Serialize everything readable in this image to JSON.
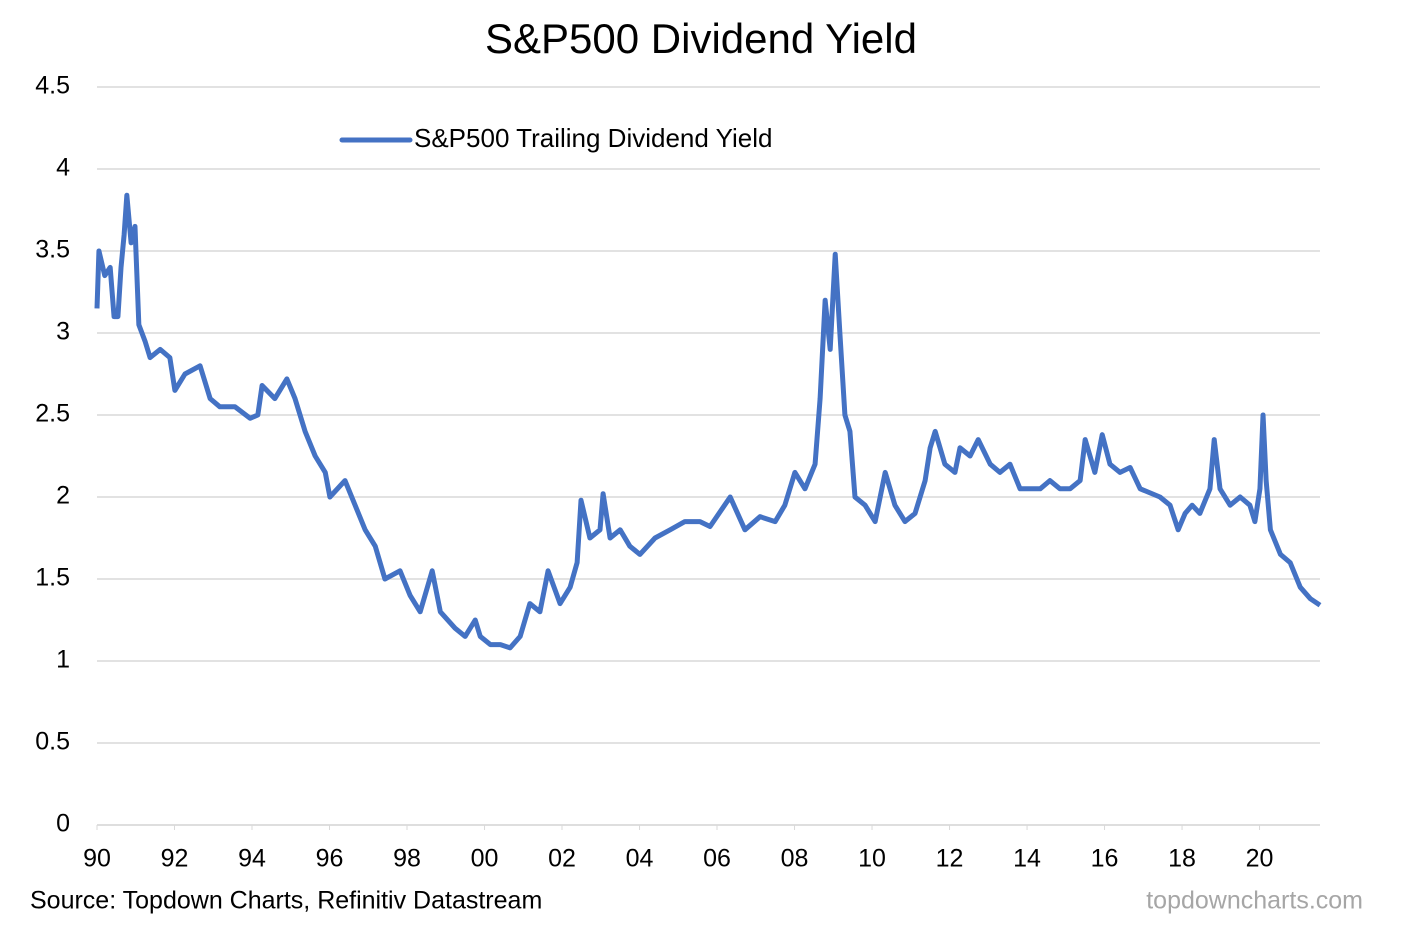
{
  "chart_data": {
    "type": "line",
    "title": "S&P500 Dividend Yield",
    "source": "Source: Topdown Charts, Refinitiv Datastream",
    "watermark": "topdowncharts.com",
    "legend": "top",
    "grid": true,
    "x": [
      1990.0,
      1990.05,
      1990.2,
      1990.34,
      1990.44,
      1990.54,
      1990.62,
      1990.7,
      1990.77,
      1990.88,
      1990.98,
      1991.08,
      1991.24,
      1991.37,
      1991.63,
      1991.88,
      1992.01,
      1992.27,
      1992.66,
      1992.92,
      1993.17,
      1993.56,
      1993.95,
      1994.15,
      1994.26,
      1994.59,
      1994.9,
      1995.11,
      1995.37,
      1995.63,
      1995.89,
      1996.01,
      1996.4,
      1996.66,
      1996.92,
      1997.18,
      1997.43,
      1997.82,
      1998.08,
      1998.34,
      1998.65,
      1998.86,
      1999.24,
      1999.5,
      1999.76,
      1999.89,
      2000.15,
      2000.41,
      2000.66,
      2000.92,
      2001.17,
      2001.43,
      2001.64,
      2001.95,
      2002.21,
      2002.39,
      2002.49,
      2002.72,
      2002.98,
      2003.06,
      2003.24,
      2003.5,
      2003.75,
      2004.01,
      2004.4,
      2004.79,
      2005.17,
      2005.56,
      2005.82,
      2006.34,
      2006.72,
      2007.11,
      2007.5,
      2007.75,
      2008.01,
      2008.27,
      2008.53,
      2008.66,
      2008.79,
      2008.92,
      2009.05,
      2009.17,
      2009.3,
      2009.43,
      2009.56,
      2009.82,
      2010.08,
      2010.34,
      2010.59,
      2010.85,
      2011.11,
      2011.37,
      2011.5,
      2011.63,
      2011.88,
      2012.14,
      2012.27,
      2012.53,
      2012.74,
      2013.05,
      2013.3,
      2013.56,
      2013.82,
      2014.08,
      2014.34,
      2014.59,
      2014.85,
      2015.11,
      2015.37,
      2015.5,
      2015.75,
      2015.94,
      2016.14,
      2016.4,
      2016.66,
      2016.92,
      2017.43,
      2017.69,
      2017.9,
      2018.08,
      2018.26,
      2018.46,
      2018.72,
      2018.83,
      2018.98,
      2019.24,
      2019.5,
      2019.75,
      2019.88,
      2020.01,
      2020.09,
      2020.17,
      2020.28,
      2020.54,
      2020.79,
      2021.05,
      2021.31,
      2021.56
    ],
    "series": [
      {
        "name": "S&P500 Trailing Dividend Yield",
        "color": "#4472c4",
        "values": [
          3.15,
          3.5,
          3.35,
          3.4,
          3.1,
          3.1,
          3.4,
          3.6,
          3.84,
          3.55,
          3.65,
          3.05,
          2.95,
          2.85,
          2.9,
          2.85,
          2.65,
          2.75,
          2.8,
          2.6,
          2.55,
          2.55,
          2.48,
          2.5,
          2.68,
          2.6,
          2.72,
          2.6,
          2.4,
          2.25,
          2.15,
          2.0,
          2.1,
          1.95,
          1.8,
          1.7,
          1.5,
          1.55,
          1.4,
          1.3,
          1.55,
          1.3,
          1.2,
          1.15,
          1.25,
          1.15,
          1.1,
          1.1,
          1.08,
          1.15,
          1.35,
          1.3,
          1.55,
          1.35,
          1.45,
          1.6,
          1.98,
          1.75,
          1.8,
          2.02,
          1.75,
          1.8,
          1.7,
          1.65,
          1.75,
          1.8,
          1.85,
          1.85,
          1.82,
          2.0,
          1.8,
          1.88,
          1.85,
          1.95,
          2.15,
          2.05,
          2.2,
          2.6,
          3.2,
          2.9,
          3.48,
          3.0,
          2.5,
          2.4,
          2.0,
          1.95,
          1.85,
          2.15,
          1.95,
          1.85,
          1.9,
          2.1,
          2.3,
          2.4,
          2.2,
          2.15,
          2.3,
          2.25,
          2.35,
          2.2,
          2.15,
          2.2,
          2.05,
          2.05,
          2.05,
          2.1,
          2.05,
          2.05,
          2.1,
          2.35,
          2.15,
          2.38,
          2.2,
          2.15,
          2.18,
          2.05,
          2.0,
          1.95,
          1.8,
          1.9,
          1.95,
          1.9,
          2.05,
          2.35,
          2.05,
          1.95,
          2.0,
          1.95,
          1.85,
          2.05,
          2.5,
          2.1,
          1.8,
          1.65,
          1.6,
          1.45,
          1.38,
          1.34
        ]
      }
    ],
    "xlim": [
      1990,
      2021.56
    ],
    "xticks": [
      {
        "value": 1990,
        "label": "90"
      },
      {
        "value": 1992,
        "label": "92"
      },
      {
        "value": 1994,
        "label": "94"
      },
      {
        "value": 1996,
        "label": "96"
      },
      {
        "value": 1998,
        "label": "98"
      },
      {
        "value": 2000,
        "label": "00"
      },
      {
        "value": 2002,
        "label": "02"
      },
      {
        "value": 2004,
        "label": "04"
      },
      {
        "value": 2006,
        "label": "06"
      },
      {
        "value": 2008,
        "label": "08"
      },
      {
        "value": 2010,
        "label": "10"
      },
      {
        "value": 2012,
        "label": "12"
      },
      {
        "value": 2014,
        "label": "14"
      },
      {
        "value": 2016,
        "label": "16"
      },
      {
        "value": 2018,
        "label": "18"
      },
      {
        "value": 2020,
        "label": "20"
      }
    ],
    "ylim": [
      0,
      4.5
    ],
    "yticks": [
      0,
      0.5,
      1,
      1.5,
      2,
      2.5,
      3,
      3.5,
      4,
      4.5
    ]
  }
}
